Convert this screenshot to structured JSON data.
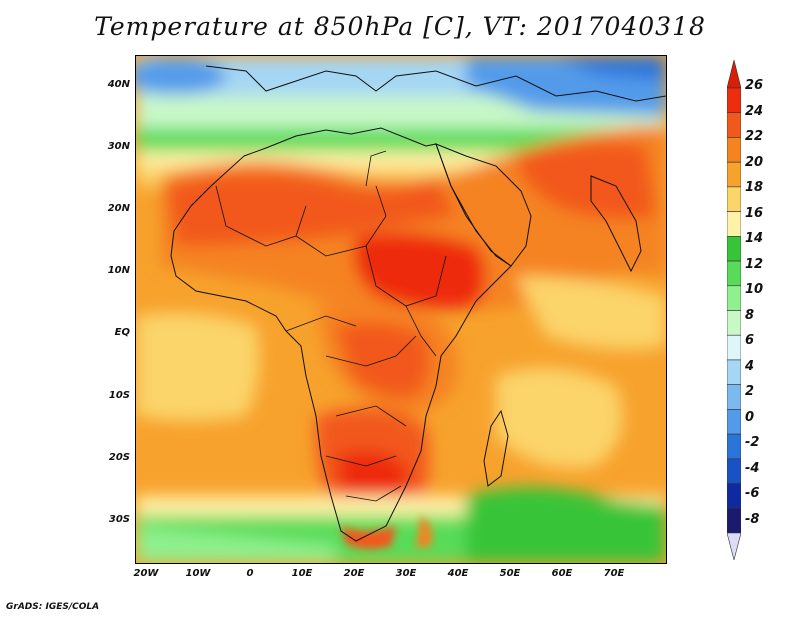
{
  "title": "Temperature at 850hPa [C], VT: 2017040318",
  "credit": "GrADS: IGES/COLA",
  "map": {
    "lon_labels": [
      "20W",
      "10W",
      "0",
      "10E",
      "20E",
      "30E",
      "40E",
      "50E",
      "60E",
      "70E"
    ],
    "lat_labels": [
      "40N",
      "30N",
      "20N",
      "10N",
      "EQ",
      "10S",
      "20S",
      "30S"
    ]
  },
  "colorbar": {
    "levels": [
      "26",
      "24",
      "22",
      "20",
      "18",
      "16",
      "14",
      "12",
      "10",
      "8",
      "6",
      "4",
      "2",
      "0",
      "-2",
      "-4",
      "-6",
      "-8"
    ],
    "colors": [
      "#ee2c0e",
      "#f2581a",
      "#f58320",
      "#f7a22d",
      "#fbd46a",
      "#fef1a8",
      "#38c439",
      "#58db58",
      "#8ff08d",
      "#c8f8c8",
      "#dff6f8",
      "#a5d6f4",
      "#7cb9ef",
      "#539bea",
      "#2a74dc",
      "#1a52c5",
      "#0f2aa0",
      "#1a1a6e"
    ],
    "top_arrow_color": "#d81f05",
    "bottom_arrow_color": "#dcdcf6"
  }
}
